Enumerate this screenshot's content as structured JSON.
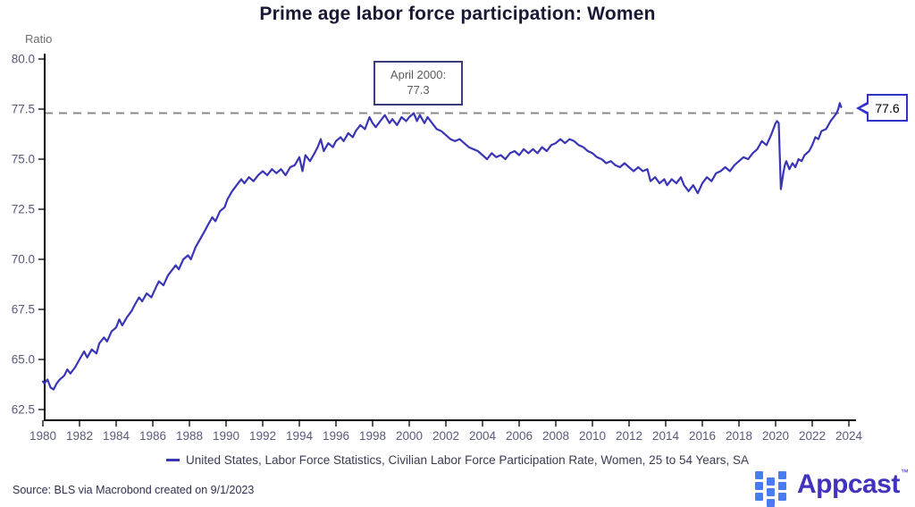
{
  "title": "Prime age labor force participation: Women",
  "y_axis_label": "Ratio",
  "annotation": {
    "line1": "April 2000:",
    "line2": "77.3"
  },
  "latest_callout": "77.6",
  "legend": {
    "label": "United States, Labor Force Statistics, Civilian Labor Force Participation Rate, Women, 25 to 54 Years, SA"
  },
  "source_note": "Source: BLS via Macrobond created on 9/1/2023",
  "branding": {
    "name": "Appcast",
    "trademark": "™"
  },
  "colors": {
    "line": "#3a35b4",
    "title_text": "#191936",
    "axis": "#000000",
    "tick_label": "#5a5a7d",
    "ratio_label": "#6e6e6e",
    "dashed_reference": "#8a8a8a",
    "annotation_border": "#3c3c78",
    "annotation_text": "#5c5c5c",
    "callout_border": "#3132c8",
    "legend_text": "#3b3b55",
    "source_text": "#303052",
    "logo_square": "#4a7cf1",
    "logo_text": "#4133bb"
  },
  "chart_data": {
    "type": "line",
    "title": "Prime age labor force participation: Women",
    "xlabel": "",
    "ylabel": "Ratio",
    "xlim": [
      1980,
      2024.5
    ],
    "ylim": [
      62.0,
      80.3
    ],
    "grid": false,
    "legend_position": "bottom",
    "x_ticks": [
      1980,
      1982,
      1984,
      1986,
      1988,
      1990,
      1992,
      1994,
      1996,
      1998,
      2000,
      2002,
      2004,
      2006,
      2008,
      2010,
      2012,
      2014,
      2016,
      2018,
      2020,
      2022,
      2024
    ],
    "y_ticks": [
      80.0,
      77.5,
      75.0,
      72.5,
      70.0,
      67.5,
      65.0,
      62.5
    ],
    "reference_line": {
      "value": 77.3,
      "label": "April 2000: 77.3",
      "style": "dashed"
    },
    "latest_point": {
      "value": 77.6
    },
    "series": [
      {
        "name": "United States, Labor Force Statistics, Civilian Labor Force Participation Rate, Women, 25 to 54 Years, SA",
        "color": "#3a35b4",
        "points": [
          [
            1980.0,
            63.9
          ],
          [
            1980.08,
            63.8
          ],
          [
            1980.25,
            64.0
          ],
          [
            1980.42,
            63.6
          ],
          [
            1980.58,
            63.5
          ],
          [
            1980.75,
            63.8
          ],
          [
            1980.92,
            64.0
          ],
          [
            1981.17,
            64.2
          ],
          [
            1981.33,
            64.5
          ],
          [
            1981.5,
            64.3
          ],
          [
            1981.75,
            64.6
          ],
          [
            1982.0,
            65.0
          ],
          [
            1982.25,
            65.4
          ],
          [
            1982.42,
            65.1
          ],
          [
            1982.67,
            65.5
          ],
          [
            1982.92,
            65.3
          ],
          [
            1983.08,
            65.8
          ],
          [
            1983.33,
            66.1
          ],
          [
            1983.5,
            65.9
          ],
          [
            1983.75,
            66.4
          ],
          [
            1984.0,
            66.6
          ],
          [
            1984.17,
            67.0
          ],
          [
            1984.33,
            66.7
          ],
          [
            1984.58,
            67.1
          ],
          [
            1984.83,
            67.4
          ],
          [
            1985.0,
            67.7
          ],
          [
            1985.25,
            68.1
          ],
          [
            1985.42,
            67.9
          ],
          [
            1985.67,
            68.3
          ],
          [
            1985.92,
            68.1
          ],
          [
            1986.17,
            68.6
          ],
          [
            1986.33,
            68.9
          ],
          [
            1986.58,
            68.7
          ],
          [
            1986.83,
            69.2
          ],
          [
            1987.0,
            69.4
          ],
          [
            1987.25,
            69.7
          ],
          [
            1987.42,
            69.5
          ],
          [
            1987.67,
            70.0
          ],
          [
            1987.92,
            70.2
          ],
          [
            1988.08,
            70.0
          ],
          [
            1988.33,
            70.6
          ],
          [
            1988.58,
            71.0
          ],
          [
            1988.83,
            71.4
          ],
          [
            1989.0,
            71.7
          ],
          [
            1989.25,
            72.1
          ],
          [
            1989.42,
            71.9
          ],
          [
            1989.67,
            72.4
          ],
          [
            1989.92,
            72.6
          ],
          [
            1990.08,
            73.0
          ],
          [
            1990.33,
            73.4
          ],
          [
            1990.58,
            73.7
          ],
          [
            1990.83,
            74.0
          ],
          [
            1991.0,
            73.8
          ],
          [
            1991.25,
            74.1
          ],
          [
            1991.5,
            73.9
          ],
          [
            1991.75,
            74.2
          ],
          [
            1992.0,
            74.4
          ],
          [
            1992.25,
            74.2
          ],
          [
            1992.5,
            74.5
          ],
          [
            1992.75,
            74.3
          ],
          [
            1993.0,
            74.5
          ],
          [
            1993.25,
            74.2
          ],
          [
            1993.5,
            74.6
          ],
          [
            1993.75,
            74.7
          ],
          [
            1994.0,
            75.1
          ],
          [
            1994.17,
            74.4
          ],
          [
            1994.33,
            75.2
          ],
          [
            1994.58,
            74.9
          ],
          [
            1994.83,
            75.3
          ],
          [
            1995.0,
            75.6
          ],
          [
            1995.17,
            76.0
          ],
          [
            1995.33,
            75.4
          ],
          [
            1995.58,
            75.8
          ],
          [
            1995.83,
            75.6
          ],
          [
            1996.0,
            75.9
          ],
          [
            1996.25,
            76.1
          ],
          [
            1996.42,
            75.9
          ],
          [
            1996.67,
            76.3
          ],
          [
            1996.92,
            76.1
          ],
          [
            1997.08,
            76.4
          ],
          [
            1997.33,
            76.7
          ],
          [
            1997.58,
            76.5
          ],
          [
            1997.83,
            77.1
          ],
          [
            1998.0,
            76.8
          ],
          [
            1998.17,
            76.6
          ],
          [
            1998.42,
            76.9
          ],
          [
            1998.67,
            77.2
          ],
          [
            1998.92,
            76.8
          ],
          [
            1999.08,
            77.0
          ],
          [
            1999.33,
            76.7
          ],
          [
            1999.58,
            77.1
          ],
          [
            1999.83,
            76.9
          ],
          [
            2000.0,
            77.1
          ],
          [
            2000.25,
            77.3
          ],
          [
            2000.42,
            76.9
          ],
          [
            2000.58,
            77.2
          ],
          [
            2000.83,
            76.8
          ],
          [
            2001.0,
            77.1
          ],
          [
            2001.25,
            76.8
          ],
          [
            2001.5,
            76.5
          ],
          [
            2001.75,
            76.4
          ],
          [
            2002.0,
            76.2
          ],
          [
            2002.25,
            76.0
          ],
          [
            2002.5,
            75.9
          ],
          [
            2002.75,
            76.0
          ],
          [
            2003.0,
            75.8
          ],
          [
            2003.25,
            75.6
          ],
          [
            2003.5,
            75.5
          ],
          [
            2003.75,
            75.4
          ],
          [
            2004.0,
            75.2
          ],
          [
            2004.25,
            75.0
          ],
          [
            2004.5,
            75.3
          ],
          [
            2004.75,
            75.1
          ],
          [
            2005.0,
            75.2
          ],
          [
            2005.25,
            75.0
          ],
          [
            2005.5,
            75.3
          ],
          [
            2005.75,
            75.4
          ],
          [
            2006.0,
            75.2
          ],
          [
            2006.25,
            75.5
          ],
          [
            2006.5,
            75.3
          ],
          [
            2006.75,
            75.5
          ],
          [
            2007.0,
            75.3
          ],
          [
            2007.25,
            75.6
          ],
          [
            2007.5,
            75.4
          ],
          [
            2007.75,
            75.7
          ],
          [
            2008.0,
            75.8
          ],
          [
            2008.25,
            76.0
          ],
          [
            2008.5,
            75.8
          ],
          [
            2008.75,
            76.0
          ],
          [
            2009.0,
            75.9
          ],
          [
            2009.25,
            75.7
          ],
          [
            2009.5,
            75.6
          ],
          [
            2009.75,
            75.4
          ],
          [
            2010.0,
            75.3
          ],
          [
            2010.25,
            75.1
          ],
          [
            2010.5,
            75.0
          ],
          [
            2010.75,
            74.8
          ],
          [
            2011.0,
            74.9
          ],
          [
            2011.25,
            74.7
          ],
          [
            2011.5,
            74.6
          ],
          [
            2011.75,
            74.8
          ],
          [
            2012.0,
            74.6
          ],
          [
            2012.25,
            74.4
          ],
          [
            2012.5,
            74.6
          ],
          [
            2012.75,
            74.4
          ],
          [
            2013.0,
            74.5
          ],
          [
            2013.17,
            73.9
          ],
          [
            2013.42,
            74.1
          ],
          [
            2013.67,
            73.8
          ],
          [
            2013.92,
            74.0
          ],
          [
            2014.08,
            73.7
          ],
          [
            2014.33,
            74.0
          ],
          [
            2014.58,
            73.8
          ],
          [
            2014.83,
            74.1
          ],
          [
            2015.0,
            73.7
          ],
          [
            2015.25,
            73.4
          ],
          [
            2015.5,
            73.7
          ],
          [
            2015.75,
            73.3
          ],
          [
            2016.0,
            73.8
          ],
          [
            2016.25,
            74.1
          ],
          [
            2016.5,
            73.9
          ],
          [
            2016.75,
            74.3
          ],
          [
            2017.0,
            74.4
          ],
          [
            2017.25,
            74.6
          ],
          [
            2017.5,
            74.4
          ],
          [
            2017.75,
            74.7
          ],
          [
            2018.0,
            74.9
          ],
          [
            2018.25,
            75.1
          ],
          [
            2018.5,
            75.0
          ],
          [
            2018.75,
            75.3
          ],
          [
            2019.0,
            75.5
          ],
          [
            2019.25,
            75.9
          ],
          [
            2019.5,
            75.7
          ],
          [
            2019.75,
            76.2
          ],
          [
            2020.0,
            76.8
          ],
          [
            2020.08,
            76.9
          ],
          [
            2020.17,
            76.8
          ],
          [
            2020.29,
            73.5
          ],
          [
            2020.42,
            74.3
          ],
          [
            2020.5,
            74.7
          ],
          [
            2020.58,
            74.9
          ],
          [
            2020.75,
            74.5
          ],
          [
            2020.92,
            74.8
          ],
          [
            2021.08,
            74.6
          ],
          [
            2021.25,
            75.0
          ],
          [
            2021.42,
            74.9
          ],
          [
            2021.58,
            75.2
          ],
          [
            2021.83,
            75.4
          ],
          [
            2022.0,
            75.7
          ],
          [
            2022.17,
            76.1
          ],
          [
            2022.33,
            76.0
          ],
          [
            2022.5,
            76.4
          ],
          [
            2022.75,
            76.5
          ],
          [
            2023.0,
            76.9
          ],
          [
            2023.17,
            77.1
          ],
          [
            2023.33,
            77.3
          ],
          [
            2023.42,
            77.5
          ],
          [
            2023.5,
            77.8
          ],
          [
            2023.58,
            77.6
          ]
        ]
      }
    ]
  }
}
